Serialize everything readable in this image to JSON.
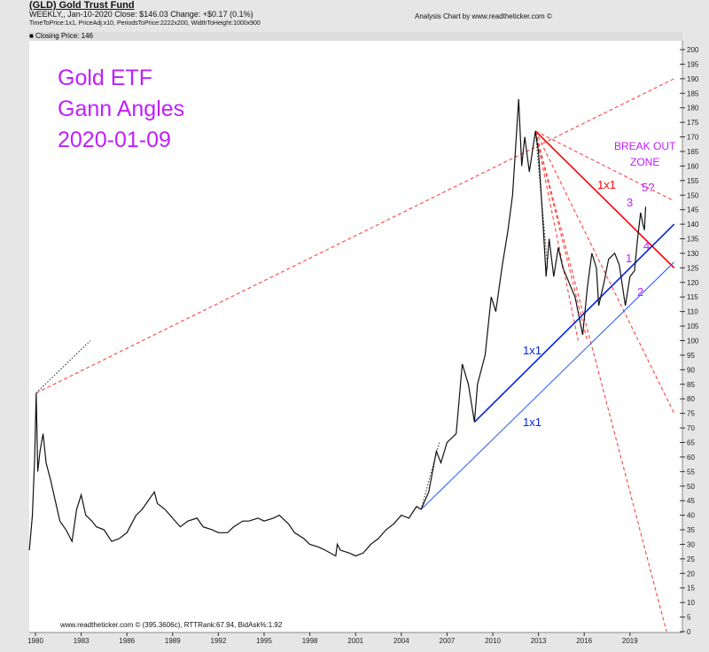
{
  "header": {
    "title": "(GLD) Gold Trust Fund",
    "summary": "WEEKLY,, Jan-10-2020  Close: $146.03  Change: +$0.17  (0.1%)",
    "params": "TimeToPrice:1x1, PriceAdj:x10, PeriodsToPrice:2222x200, WidthToHeight:1000x900",
    "credit": "Analysis Chart by www.readtheticker.com ©",
    "legend": "■ Closing Price: 146",
    "footer": "www.readtheticker.com © (395.3606c), RTTRank:67.94, BidAsk%:1.92"
  },
  "chart_data": {
    "type": "line",
    "xlim": [
      1979.6,
      2021.9
    ],
    "ylim": [
      0,
      200
    ],
    "x_ticks": [
      1980,
      1983,
      1986,
      1989,
      1992,
      1995,
      1998,
      2001,
      2004,
      2007,
      2010,
      2013,
      2016,
      2019
    ],
    "y_tick_step": 5,
    "grid": false,
    "series": [
      {
        "name": "Closing Price",
        "color": "#111111",
        "points": [
          [
            1979.6,
            28
          ],
          [
            1979.8,
            40
          ],
          [
            1979.95,
            60
          ],
          [
            1980.05,
            82
          ],
          [
            1980.15,
            55
          ],
          [
            1980.3,
            62
          ],
          [
            1980.5,
            68
          ],
          [
            1980.7,
            58
          ],
          [
            1981,
            52
          ],
          [
            1981.3,
            45
          ],
          [
            1981.6,
            38
          ],
          [
            1982,
            35
          ],
          [
            1982.4,
            31
          ],
          [
            1982.7,
            42
          ],
          [
            1983,
            47
          ],
          [
            1983.3,
            40
          ],
          [
            1983.7,
            38
          ],
          [
            1984,
            36
          ],
          [
            1984.5,
            35
          ],
          [
            1985,
            31
          ],
          [
            1985.5,
            32
          ],
          [
            1986,
            34
          ],
          [
            1986.6,
            40
          ],
          [
            1987,
            42
          ],
          [
            1987.8,
            48
          ],
          [
            1988,
            44
          ],
          [
            1988.5,
            42
          ],
          [
            1989,
            39
          ],
          [
            1989.5,
            36
          ],
          [
            1990,
            38
          ],
          [
            1990.6,
            39
          ],
          [
            1991,
            36
          ],
          [
            1991.6,
            35
          ],
          [
            1992,
            34
          ],
          [
            1992.6,
            34
          ],
          [
            1993,
            36
          ],
          [
            1993.6,
            38
          ],
          [
            1994,
            38
          ],
          [
            1994.6,
            39
          ],
          [
            1995,
            38
          ],
          [
            1995.6,
            39
          ],
          [
            1996,
            40
          ],
          [
            1996.6,
            37
          ],
          [
            1997,
            34
          ],
          [
            1997.6,
            32
          ],
          [
            1998,
            30
          ],
          [
            1998.6,
            29
          ],
          [
            1999,
            28
          ],
          [
            1999.7,
            26
          ],
          [
            1999.8,
            30
          ],
          [
            2000,
            28
          ],
          [
            2000.6,
            27
          ],
          [
            2001,
            26
          ],
          [
            2001.5,
            27
          ],
          [
            2002,
            30
          ],
          [
            2002.5,
            32
          ],
          [
            2003,
            35
          ],
          [
            2003.5,
            37
          ],
          [
            2004,
            40
          ],
          [
            2004.5,
            39
          ],
          [
            2005,
            43
          ],
          [
            2005.3,
            42
          ],
          [
            2005.8,
            48
          ],
          [
            2006.3,
            62
          ],
          [
            2006.6,
            58
          ],
          [
            2007,
            65
          ],
          [
            2007.6,
            68
          ],
          [
            2008,
            92
          ],
          [
            2008.4,
            85
          ],
          [
            2008.8,
            72
          ],
          [
            2009,
            85
          ],
          [
            2009.5,
            95
          ],
          [
            2009.9,
            115
          ],
          [
            2010.2,
            110
          ],
          [
            2010.6,
            125
          ],
          [
            2011,
            138
          ],
          [
            2011.3,
            150
          ],
          [
            2011.7,
            183
          ],
          [
            2011.9,
            160
          ],
          [
            2012.1,
            170
          ],
          [
            2012.4,
            158
          ],
          [
            2012.8,
            172
          ],
          [
            2013,
            165
          ],
          [
            2013.3,
            140
          ],
          [
            2013.5,
            122
          ],
          [
            2013.7,
            135
          ],
          [
            2014,
            122
          ],
          [
            2014.3,
            132
          ],
          [
            2014.6,
            125
          ],
          [
            2015,
            120
          ],
          [
            2015.4,
            115
          ],
          [
            2015.9,
            102
          ],
          [
            2016.2,
            118
          ],
          [
            2016.5,
            130
          ],
          [
            2016.8,
            125
          ],
          [
            2016.95,
            112
          ],
          [
            2017.3,
            120
          ],
          [
            2017.6,
            128
          ],
          [
            2018,
            130
          ],
          [
            2018.3,
            126
          ],
          [
            2018.7,
            112
          ],
          [
            2019,
            122
          ],
          [
            2019.3,
            124
          ],
          [
            2019.5,
            135
          ],
          [
            2019.7,
            144
          ],
          [
            2019.85,
            140
          ],
          [
            2019.95,
            138
          ],
          [
            2020.03,
            146
          ]
        ]
      }
    ],
    "gann_lines": [
      {
        "label": "1x1",
        "color": "#ff0000",
        "style": "solid",
        "from": [
          2012.8,
          172
        ],
        "to": [
          2021.9,
          125
        ]
      },
      {
        "color": "#ff4040",
        "style": "dashed",
        "from": [
          2012.8,
          172
        ],
        "to": [
          2021.9,
          148
        ]
      },
      {
        "color": "#ff4040",
        "style": "dashed",
        "from": [
          2012.8,
          172
        ],
        "to": [
          2021.9,
          75
        ]
      },
      {
        "color": "#ff4040",
        "style": "dashed",
        "from": [
          2012.8,
          172
        ],
        "to": [
          2021.4,
          0
        ]
      },
      {
        "color": "#ff4040",
        "style": "dashed",
        "from": [
          2012.8,
          172
        ],
        "to": [
          2016.2,
          100
        ]
      },
      {
        "color": "#ff4040",
        "style": "dashed",
        "from": [
          2012.8,
          172
        ],
        "to": [
          2015.6,
          100
        ]
      },
      {
        "color": "#ff4040",
        "style": "dashed",
        "from": [
          1980.05,
          82
        ],
        "to": [
          2021.9,
          190
        ]
      },
      {
        "color": "#333333",
        "style": "dotted",
        "from": [
          1980.05,
          82
        ],
        "to": [
          1983.6,
          100
        ]
      },
      {
        "color": "#333333",
        "style": "dotted",
        "from": [
          2005.3,
          42
        ],
        "to": [
          2006.5,
          65
        ]
      },
      {
        "color": "#333333",
        "style": "dotted",
        "from": [
          2012.8,
          172
        ],
        "to": [
          2013.6,
          125
        ]
      },
      {
        "label": "1x1",
        "color": "#0022ee",
        "style": "solid",
        "from": [
          2008.8,
          72
        ],
        "to": [
          2021.9,
          140
        ]
      },
      {
        "label": "1x1",
        "color": "#3366ff",
        "style": "thin",
        "from": [
          2005.3,
          42
        ],
        "to": [
          2021.9,
          127
        ]
      }
    ],
    "annotations": {
      "title1": "Gold ETF",
      "title2": "Gann Angles",
      "title3": "2020-01-09",
      "breakout1": "BREAK OUT",
      "breakout2": "ZONE",
      "red_1x1": "1x1",
      "blue_1x1_a": "1x1",
      "blue_1x1_b": "1x1",
      "wave1": "1",
      "wave2": "2",
      "wave3": "3",
      "wave4": "4",
      "wave5": "5?",
      "purple": "#c01eff",
      "blue": "#0022ee",
      "red": "#ff0000"
    }
  }
}
